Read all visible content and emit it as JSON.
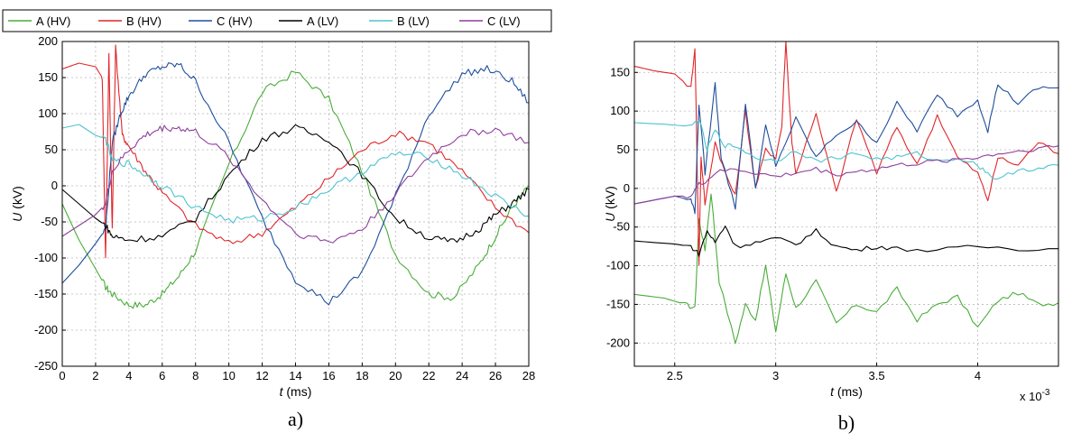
{
  "legend": [
    {
      "name": "A (HV)",
      "color": "#4aac3a"
    },
    {
      "name": "B (HV)",
      "color": "#e0262a"
    },
    {
      "name": "C (HV)",
      "color": "#1f4e9c"
    },
    {
      "name": "A (LV)",
      "color": "#000000"
    },
    {
      "name": "B (LV)",
      "color": "#4ec3cf"
    },
    {
      "name": "C (LV)",
      "color": "#8e3f9c"
    }
  ],
  "chart_data": [
    {
      "type": "line",
      "panel_label": "a)",
      "xlabel_var": "t",
      "xlabel_unit": " (ms)",
      "ylabel_var": "U",
      "ylabel_unit": " (kV)",
      "xlim": [
        0,
        28
      ],
      "ylim": [
        -250,
        200
      ],
      "xticks": [
        0,
        2,
        4,
        6,
        8,
        10,
        12,
        14,
        16,
        18,
        20,
        22,
        24,
        26,
        28
      ],
      "xtick_labels": [
        "0",
        "2",
        "4",
        "6",
        "8",
        "10",
        "12",
        "14",
        "16",
        "18",
        "20",
        "22",
        "24",
        "26",
        "28"
      ],
      "yticks": [
        -250,
        -200,
        -150,
        -100,
        -50,
        0,
        50,
        100,
        150,
        200
      ],
      "ytick_labels": [
        "-250",
        "-200",
        "-150",
        "-100",
        "-50",
        "0",
        "50",
        "100",
        "150",
        "200"
      ],
      "grid": true,
      "legend": "top, outside",
      "series": [
        {
          "name": "A (HV)",
          "x": [
            0,
            1,
            2,
            2.6,
            3,
            4,
            5,
            6,
            7,
            8,
            10,
            12,
            14,
            16,
            18,
            20,
            22,
            23.5,
            25,
            26,
            27,
            28
          ],
          "y": [
            -25,
            -75,
            -115,
            -140,
            -150,
            -165,
            -165,
            -150,
            -125,
            -90,
            30,
            130,
            158,
            120,
            20,
            -95,
            -150,
            -155,
            -110,
            -70,
            -30,
            0
          ]
        },
        {
          "name": "B (HV)",
          "x": [
            0,
            1,
            2,
            2.4,
            2.6,
            2.8,
            3,
            3.2,
            3.6,
            4,
            5,
            6,
            8,
            10,
            12,
            14,
            16,
            18,
            20,
            22,
            24,
            26,
            28
          ],
          "y": [
            162,
            170,
            165,
            150,
            -100,
            180,
            -60,
            192,
            70,
            55,
            20,
            -10,
            -55,
            -80,
            -65,
            -30,
            10,
            50,
            73,
            60,
            20,
            -30,
            -65
          ]
        },
        {
          "name": "C (HV)",
          "x": [
            0,
            1,
            2,
            2.6,
            3,
            3.5,
            4,
            5,
            6,
            7,
            8,
            10,
            12,
            14,
            16,
            18,
            20,
            22,
            24,
            25.5,
            27,
            28
          ],
          "y": [
            -135,
            -110,
            -80,
            -60,
            60,
            100,
            125,
            155,
            165,
            168,
            145,
            60,
            -45,
            -130,
            -162,
            -120,
            -15,
            100,
            155,
            162,
            145,
            115
          ]
        },
        {
          "name": "A (LV)",
          "x": [
            0,
            1,
            2,
            2.6,
            3,
            4,
            6,
            8,
            10,
            12,
            14,
            16,
            18,
            20,
            22,
            23.5,
            25,
            26,
            27,
            28
          ],
          "y": [
            -5,
            -25,
            -45,
            -55,
            -70,
            -75,
            -70,
            -45,
            15,
            65,
            80,
            65,
            15,
            -45,
            -72,
            -78,
            -60,
            -40,
            -25,
            -5
          ]
        },
        {
          "name": "B (LV)",
          "x": [
            0,
            1,
            2,
            2.6,
            3,
            4,
            5,
            6,
            8,
            10,
            12,
            14,
            16,
            18,
            20,
            22,
            24,
            26,
            28
          ],
          "y": [
            80,
            85,
            70,
            65,
            35,
            30,
            15,
            0,
            -30,
            -48,
            -45,
            -30,
            -5,
            20,
            45,
            40,
            15,
            -15,
            -42
          ]
        },
        {
          "name": "C (LV)",
          "x": [
            0,
            1,
            2,
            2.6,
            3,
            4,
            5,
            6,
            7,
            8,
            10,
            12,
            14,
            16,
            18,
            20,
            22,
            24,
            26,
            28
          ],
          "y": [
            -70,
            -55,
            -40,
            -25,
            20,
            50,
            70,
            80,
            80,
            75,
            40,
            -20,
            -65,
            -78,
            -60,
            -10,
            40,
            72,
            78,
            60
          ]
        }
      ]
    },
    {
      "type": "line",
      "panel_label": "b)",
      "xlabel_var": "t",
      "xlabel_unit": " (ms)",
      "ylabel_var": "U",
      "ylabel_unit": " (kV)",
      "x_multiplier_text": "x 10",
      "x_multiplier_exp": "-3",
      "xlim": [
        2.3,
        4.4
      ],
      "ylim": [
        -230,
        190
      ],
      "xticks": [
        2.5,
        3,
        3.5,
        4
      ],
      "xtick_labels": [
        "2.5",
        "3",
        "3.5",
        "4"
      ],
      "yticks": [
        -200,
        -150,
        -100,
        -50,
        0,
        50,
        100,
        150
      ],
      "ytick_labels": [
        "-200",
        "-150",
        "-100",
        "-50",
        "0",
        "50",
        "100",
        "150"
      ],
      "grid": true,
      "series": [
        {
          "name": "A (HV)",
          "x": [
            2.3,
            2.45,
            2.55,
            2.6,
            2.62,
            2.65,
            2.68,
            2.72,
            2.8,
            2.85,
            2.9,
            2.95,
            3.0,
            3.05,
            3.1,
            3.2,
            3.3,
            3.4,
            3.5,
            3.6,
            3.7,
            3.8,
            3.9,
            4.0,
            4.1,
            4.2,
            4.3,
            4.4
          ],
          "y": [
            -137,
            -142,
            -150,
            -155,
            -40,
            -80,
            -5,
            -120,
            -200,
            -150,
            -170,
            -100,
            -185,
            -110,
            -155,
            -120,
            -175,
            -150,
            -160,
            -130,
            -170,
            -150,
            -140,
            -180,
            -145,
            -135,
            -150,
            -148
          ]
        },
        {
          "name": "B (HV)",
          "x": [
            2.3,
            2.4,
            2.5,
            2.58,
            2.6,
            2.62,
            2.63,
            2.65,
            2.7,
            2.75,
            2.8,
            2.85,
            2.9,
            2.95,
            3.0,
            3.03,
            3.05,
            3.08,
            3.1,
            3.2,
            3.3,
            3.4,
            3.5,
            3.6,
            3.7,
            3.8,
            3.9,
            4.0,
            4.05,
            4.1,
            4.2,
            4.3,
            4.4
          ],
          "y": [
            158,
            152,
            148,
            130,
            183,
            -100,
            40,
            -20,
            60,
            20,
            -10,
            100,
            0,
            50,
            40,
            80,
            190,
            60,
            20,
            95,
            -5,
            90,
            20,
            80,
            30,
            95,
            40,
            20,
            -15,
            40,
            30,
            60,
            45
          ]
        },
        {
          "name": "C (HV)",
          "x": [
            2.3,
            2.4,
            2.5,
            2.58,
            2.6,
            2.62,
            2.65,
            2.7,
            2.73,
            2.8,
            2.85,
            2.9,
            2.95,
            3.0,
            3.1,
            3.2,
            3.3,
            3.4,
            3.5,
            3.6,
            3.7,
            3.8,
            3.9,
            4.0,
            4.05,
            4.1,
            4.2,
            4.3,
            4.4
          ],
          "y": [
            -20,
            -15,
            -10,
            -15,
            -30,
            110,
            20,
            135,
            40,
            -25,
            110,
            0,
            80,
            30,
            90,
            40,
            70,
            85,
            60,
            110,
            75,
            120,
            95,
            115,
            75,
            135,
            110,
            130,
            130
          ]
        },
        {
          "name": "A (LV)",
          "x": [
            2.3,
            2.4,
            2.5,
            2.58,
            2.62,
            2.66,
            2.7,
            2.75,
            2.8,
            2.9,
            3.0,
            3.1,
            3.2,
            3.3,
            3.4,
            3.5,
            3.6,
            3.8,
            4.0,
            4.2,
            4.4
          ],
          "y": [
            -68,
            -70,
            -72,
            -75,
            -85,
            -55,
            -70,
            -48,
            -75,
            -70,
            -65,
            -72,
            -55,
            -75,
            -80,
            -75,
            -78,
            -80,
            -75,
            -78,
            -78
          ]
        },
        {
          "name": "B (LV)",
          "x": [
            2.3,
            2.45,
            2.58,
            2.62,
            2.66,
            2.7,
            2.75,
            2.8,
            2.9,
            3.0,
            3.1,
            3.2,
            3.3,
            3.4,
            3.5,
            3.6,
            3.7,
            3.8,
            3.9,
            4.0,
            4.05,
            4.1,
            4.2,
            4.3,
            4.4
          ],
          "y": [
            85,
            83,
            80,
            90,
            50,
            75,
            55,
            55,
            40,
            35,
            50,
            35,
            40,
            45,
            38,
            40,
            45,
            35,
            40,
            30,
            20,
            10,
            25,
            25,
            30
          ]
        },
        {
          "name": "C (LV)",
          "x": [
            2.3,
            2.4,
            2.5,
            2.58,
            2.62,
            2.66,
            2.7,
            2.8,
            2.9,
            3.0,
            3.1,
            3.2,
            3.3,
            3.4,
            3.5,
            3.6,
            3.7,
            3.8,
            3.9,
            4.0,
            4.1,
            4.2,
            4.3,
            4.4
          ],
          "y": [
            -20,
            -15,
            -10,
            -10,
            5,
            10,
            20,
            25,
            20,
            15,
            20,
            25,
            18,
            22,
            25,
            30,
            32,
            35,
            38,
            40,
            45,
            48,
            52,
            55
          ]
        }
      ]
    }
  ]
}
